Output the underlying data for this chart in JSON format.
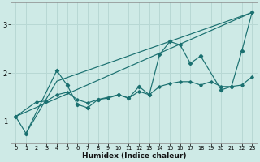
{
  "xlabel": "Humidex (Indice chaleur)",
  "bg_color": "#ceeae6",
  "line_color": "#1a7070",
  "grid_color": "#b8d8d4",
  "xlim": [
    -0.5,
    23.5
  ],
  "ylim": [
    0.55,
    3.45
  ],
  "yticks": [
    1,
    2,
    3
  ],
  "xticks": [
    0,
    1,
    2,
    3,
    4,
    5,
    6,
    7,
    8,
    9,
    10,
    11,
    12,
    13,
    14,
    15,
    16,
    17,
    18,
    19,
    20,
    21,
    22,
    23
  ],
  "line_straight1": {
    "x": [
      0,
      23
    ],
    "y": [
      1.1,
      3.25
    ]
  },
  "line_straight2": {
    "x": [
      1,
      4,
      23
    ],
    "y": [
      0.75,
      1.83,
      3.25
    ]
  },
  "line_smooth": {
    "x": [
      0,
      2,
      3,
      4,
      5,
      6,
      7,
      8,
      9,
      10,
      11,
      12,
      13,
      14,
      15,
      16,
      17,
      18,
      19,
      20,
      21,
      22,
      23
    ],
    "y": [
      1.1,
      1.4,
      1.42,
      1.55,
      1.6,
      1.45,
      1.38,
      1.45,
      1.48,
      1.55,
      1.48,
      1.62,
      1.55,
      1.72,
      1.78,
      1.82,
      1.82,
      1.75,
      1.82,
      1.72,
      1.72,
      1.75,
      1.92
    ]
  },
  "line_spiky": {
    "x": [
      0,
      1,
      4,
      5,
      6,
      7,
      8,
      10,
      11,
      12,
      13,
      14,
      15,
      16,
      17,
      18,
      20,
      21,
      22,
      23
    ],
    "y": [
      1.1,
      0.75,
      2.05,
      1.75,
      1.35,
      1.28,
      1.45,
      1.55,
      1.48,
      1.72,
      1.55,
      2.38,
      2.65,
      2.58,
      2.2,
      2.35,
      1.65,
      1.72,
      2.45,
      3.25
    ]
  }
}
